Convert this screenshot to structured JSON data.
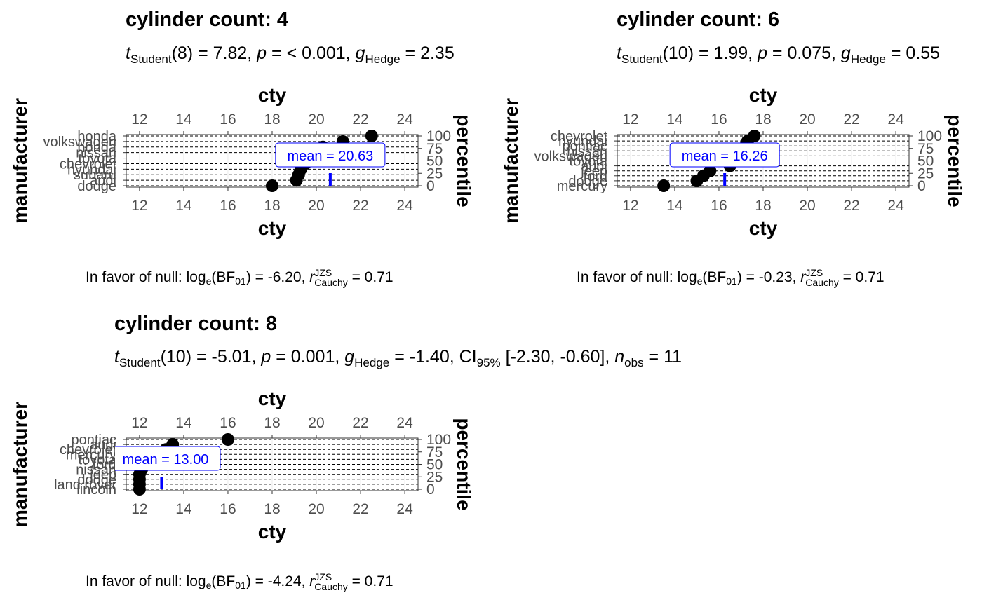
{
  "panels": [
    {
      "id": "p4",
      "title": "cylinder count: 4",
      "subtitle": {
        "t_df": "(8) = 7.82, ",
        "p": " = < 0.001, ",
        "g": " = 2.35"
      },
      "caption": {
        "a": "In favor of null: log",
        "b": "(BF",
        "c": ") = -6.20, ",
        "d": " = 0.71"
      }
    },
    {
      "id": "p6",
      "title": "cylinder count: 6",
      "subtitle": {
        "t_df": "(10) = 1.99, ",
        "p": " = 0.075, ",
        "g": " = 0.55"
      },
      "caption": {
        "a": "In favor of null: log",
        "b": "(BF",
        "c": ") = -0.23, ",
        "d": " = 0.71"
      }
    },
    {
      "id": "p8",
      "title": "cylinder count: 8",
      "subtitle": {
        "t_df": "(10) = -5.01, ",
        "p": " = 0.001, ",
        "g": " = -1.40, CI",
        "ci": "95%",
        "ci_val": " [-2.30, -0.60], ",
        "n": " = 11"
      },
      "caption": {
        "a": "In favor of null: log",
        "b": "(BF",
        "c": ") = -4.24, ",
        "d": " = 0.71"
      }
    }
  ],
  "labels": {
    "t": "t",
    "student": "Student",
    "p": "p",
    "g": "g",
    "hedge": "Hedge",
    "n": "n",
    "obs": "obs",
    "e": "e",
    "bf01": "01",
    "r": "r",
    "jzs": "JZS",
    "cauchy": "Cauchy"
  },
  "chart_data": [
    {
      "type": "scatter",
      "title": "cylinder count: 4",
      "xlabel": "cty",
      "ylabel": "manufacturer",
      "y2label": "percentile",
      "x_ticks": [
        12,
        14,
        16,
        18,
        20,
        22,
        24
      ],
      "xlim": [
        11.4,
        24.6
      ],
      "y2_ticks": [
        0,
        25,
        50,
        75,
        100
      ],
      "categories": [
        "dodge",
        "audi",
        "subaru",
        "hyundai",
        "chevrolet",
        "toyota",
        "nissan",
        "honda",
        "volkswagen",
        "honda"
      ],
      "points": [
        {
          "x": 18.0,
          "pct": 0
        },
        {
          "x": 19.1,
          "pct": 11.1
        },
        {
          "x": 19.2,
          "pct": 22.2
        },
        {
          "x": 19.3,
          "pct": 33.3
        },
        {
          "x": 19.5,
          "pct": 44.4
        },
        {
          "x": 19.7,
          "pct": 55.6
        },
        {
          "x": 20.0,
          "pct": 66.7
        },
        {
          "x": 20.3,
          "pct": 77.8
        },
        {
          "x": 21.2,
          "pct": 88.9
        },
        {
          "x": 22.5,
          "pct": 100
        }
      ],
      "mean": 20.63,
      "mean_label": "mean",
      "mean_value": "20.63"
    },
    {
      "type": "scatter",
      "title": "cylinder count: 6",
      "xlabel": "cty",
      "ylabel": "manufacturer",
      "y2label": "percentile",
      "x_ticks": [
        12,
        14,
        16,
        18,
        20,
        22,
        24
      ],
      "xlim": [
        11.4,
        24.6
      ],
      "y2_ticks": [
        0,
        25,
        50,
        75,
        100
      ],
      "categories": [
        "mercury",
        "dodge",
        "ford",
        "jeep",
        "audi",
        "toyota",
        "volkswagen",
        "nissan",
        "pontiac",
        "hyundai",
        "chevrolet"
      ],
      "points": [
        {
          "x": 13.5,
          "pct": 0
        },
        {
          "x": 15.0,
          "pct": 10
        },
        {
          "x": 15.3,
          "pct": 20
        },
        {
          "x": 15.6,
          "pct": 30
        },
        {
          "x": 16.5,
          "pct": 40
        },
        {
          "x": 16.7,
          "pct": 50
        },
        {
          "x": 16.9,
          "pct": 60
        },
        {
          "x": 17.0,
          "pct": 70
        },
        {
          "x": 17.2,
          "pct": 80
        },
        {
          "x": 17.3,
          "pct": 90
        },
        {
          "x": 17.6,
          "pct": 100
        }
      ],
      "mean": 16.26,
      "mean_label": "mean",
      "mean_value": "16.26"
    },
    {
      "type": "scatter",
      "title": "cylinder count: 8",
      "xlabel": "cty",
      "ylabel": "manufacturer",
      "y2label": "percentile",
      "x_ticks": [
        12,
        14,
        16,
        18,
        20,
        22,
        24
      ],
      "xlim": [
        11.4,
        24.6
      ],
      "y2_ticks": [
        0,
        25,
        50,
        75,
        100
      ],
      "categories": [
        "lincoln",
        "land rover",
        "dodge",
        "jeep",
        "nissan",
        "ford",
        "toyota",
        "mercury",
        "chevrolet",
        "audi",
        "pontiac"
      ],
      "points": [
        {
          "x": 12.0,
          "pct": 0
        },
        {
          "x": 12.0,
          "pct": 10
        },
        {
          "x": 12.0,
          "pct": 20
        },
        {
          "x": 12.0,
          "pct": 30
        },
        {
          "x": 12.1,
          "pct": 40
        },
        {
          "x": 12.3,
          "pct": 50
        },
        {
          "x": 12.6,
          "pct": 60
        },
        {
          "x": 12.9,
          "pct": 70
        },
        {
          "x": 13.2,
          "pct": 80
        },
        {
          "x": 13.5,
          "pct": 90
        },
        {
          "x": 16.0,
          "pct": 100
        }
      ],
      "mean": 13.0,
      "mean_label": "mean",
      "mean_value": "13.00"
    }
  ],
  "colors": {
    "mean": "#0000ff",
    "point": "#000000",
    "grid": "#000000",
    "tick_text": "#4d4d4d"
  }
}
